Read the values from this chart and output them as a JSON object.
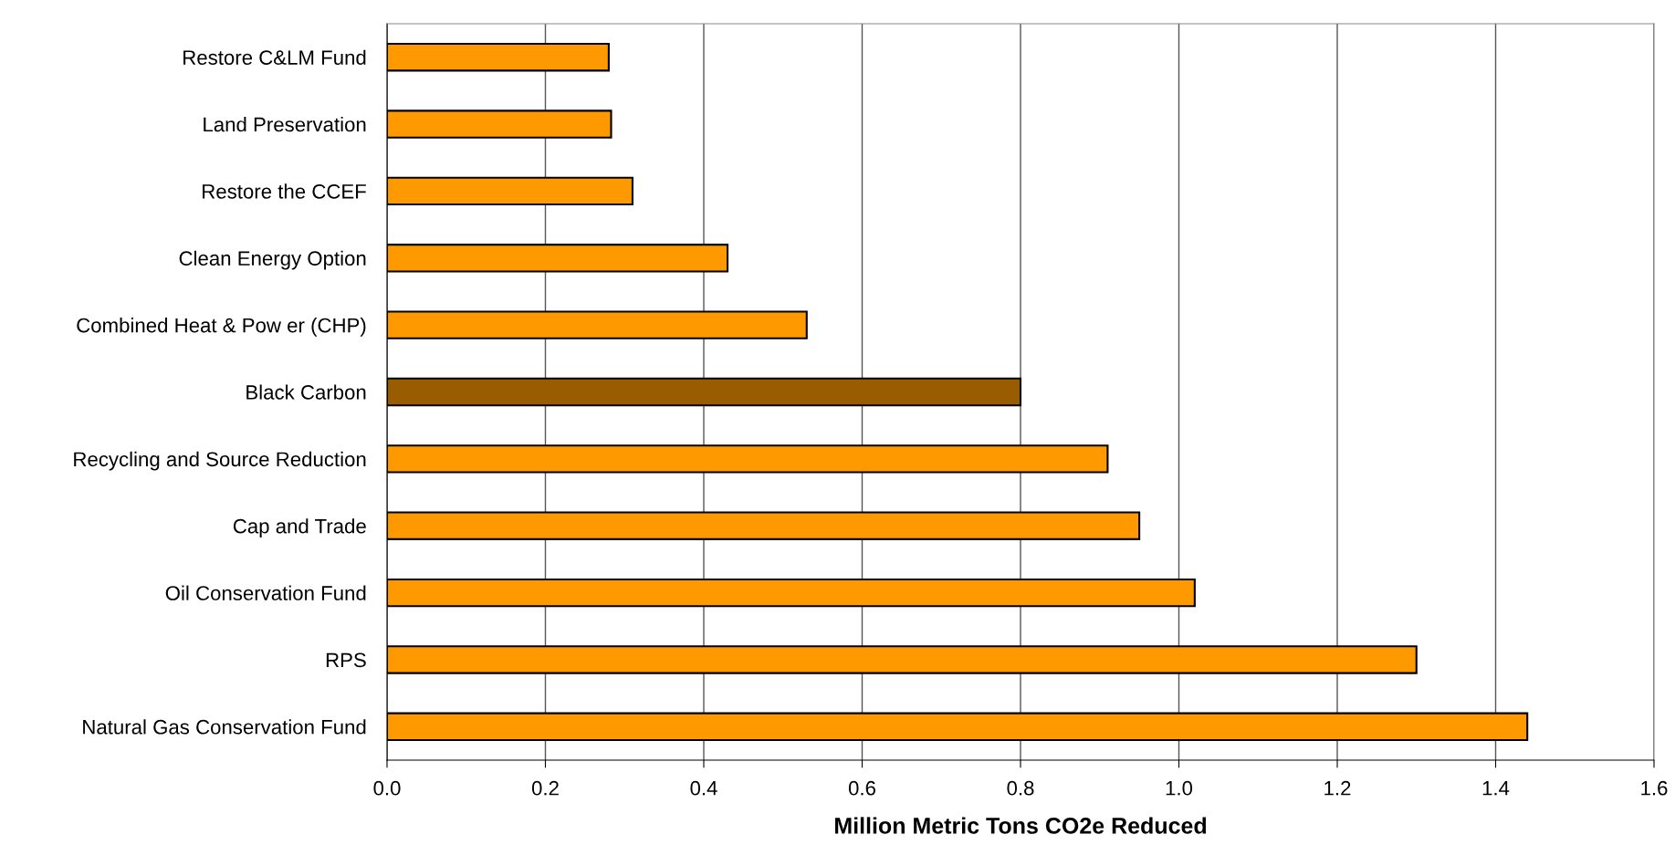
{
  "chart_data": {
    "type": "bar",
    "orientation": "horizontal",
    "xlabel": "Million Metric Tons CO2e Reduced",
    "categories": [
      "Restore C&LM Fund",
      "Land Preservation",
      "Restore the CCEF",
      "Clean Energy Option",
      "Combined Heat & Pow er (CHP)",
      "Black Carbon",
      "Recycling and Source Reduction",
      "Cap and Trade",
      "Oil Conservation Fund",
      "RPS",
      "Natural Gas Conservation Fund"
    ],
    "values": [
      0.28,
      0.283,
      0.31,
      0.43,
      0.53,
      0.8,
      0.91,
      0.95,
      1.02,
      1.3,
      1.44
    ],
    "colors": [
      "#ff9900",
      "#ff9900",
      "#ff9900",
      "#ff9900",
      "#ff9900",
      "#9a5c00",
      "#ff9900",
      "#ff9900",
      "#ff9900",
      "#ff9900",
      "#ff9900"
    ],
    "xlim": [
      0,
      1.6
    ],
    "xticks": [
      "0.0",
      0.2,
      0.4,
      0.6,
      0.8,
      "1.0",
      1.2,
      1.4,
      1.6
    ],
    "grid": "x"
  }
}
